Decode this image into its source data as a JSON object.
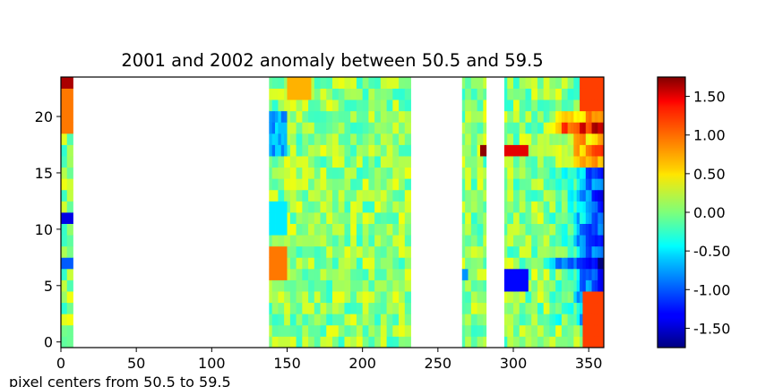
{
  "chart_data": {
    "type": "heatmap",
    "title": "2001 and 2002 anomaly between 50.5 and 59.5",
    "xlabel": "pixel centers from  50.5 to  59.5",
    "ylabel": "",
    "xlim": [
      0,
      360
    ],
    "ylim": [
      -0.5,
      23.5
    ],
    "xticks": [
      "0",
      "50",
      "100",
      "150",
      "200",
      "250",
      "300",
      "350"
    ],
    "yticks": [
      "0",
      "5",
      "10",
      "15",
      "20"
    ],
    "colormap": "jet",
    "colorbar": {
      "vmin": -1.75,
      "vmax": 1.75,
      "ticks": [
        -1.5,
        -1.0,
        -0.5,
        0.0,
        0.5,
        1.0,
        1.5
      ],
      "tick_labels": [
        "-1.50",
        "-1.00",
        "-0.50",
        "0.00",
        "0.50",
        "1.00",
        "1.50"
      ]
    },
    "rows": 24,
    "columns": 360,
    "data_column_ranges": [
      [
        0,
        8
      ],
      [
        138,
        232
      ],
      [
        266,
        282
      ],
      [
        294,
        360
      ]
    ],
    "grid": false,
    "legend": "none"
  }
}
